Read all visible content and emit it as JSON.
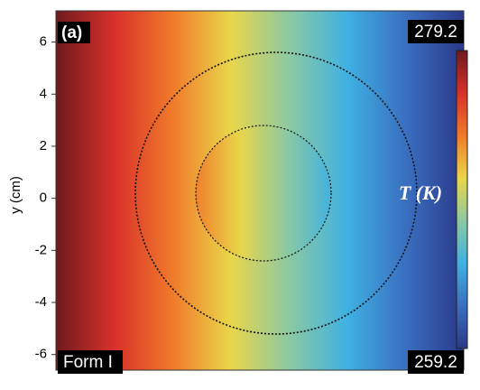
{
  "chart_data": {
    "type": "heatmap",
    "panel": "(a)",
    "label": "Form I",
    "ylabel": "y (cm)",
    "ylim": [
      -6.6,
      7.2
    ],
    "yticks": [
      -6,
      -4,
      -2,
      0,
      2,
      4,
      6
    ],
    "colorbar": {
      "label": "T (K)",
      "min": 259.2,
      "max": 279.2
    },
    "colormap": [
      "#6e1a1e",
      "#d8302a",
      "#f07a2a",
      "#e9d64a",
      "#8cc9a2",
      "#3fb1e2",
      "#3a6fc0",
      "#2b3888"
    ]
  }
}
